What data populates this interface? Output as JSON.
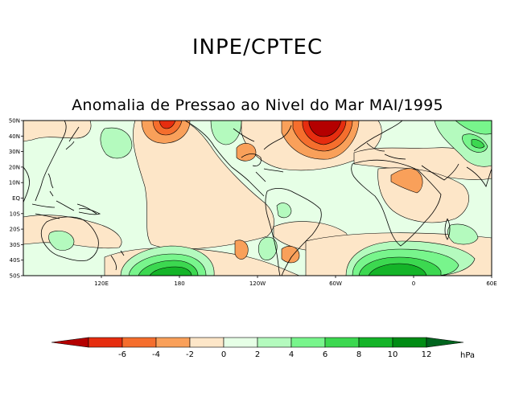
{
  "header": {
    "title": "INPE/CPTEC"
  },
  "map": {
    "title": "Anomalia de Pressao ao Nivel do Mar MAI/1995",
    "lat_labels": [
      "50N",
      "40N",
      "30N",
      "20N",
      "10N",
      "EQ",
      "10S",
      "20S",
      "30S",
      "40S",
      "50S"
    ],
    "lon_labels": [
      "120E",
      "180",
      "120W",
      "60W",
      "0",
      "60E"
    ],
    "lon_range": [
      60,
      420
    ],
    "lat_range": [
      -50,
      50
    ]
  },
  "colorbar": {
    "unit": "hPa",
    "tick_labels": [
      "-6",
      "-4",
      "-2",
      "0",
      "2",
      "4",
      "6",
      "8",
      "10",
      "12"
    ],
    "colors": [
      "#b40000",
      "#e62d0f",
      "#f56e2d",
      "#f9a05a",
      "#fde6c8",
      "#e6ffe6",
      "#b4fabe",
      "#78f58c",
      "#3cd850",
      "#14b428",
      "#008c14",
      "#00641e"
    ]
  }
}
